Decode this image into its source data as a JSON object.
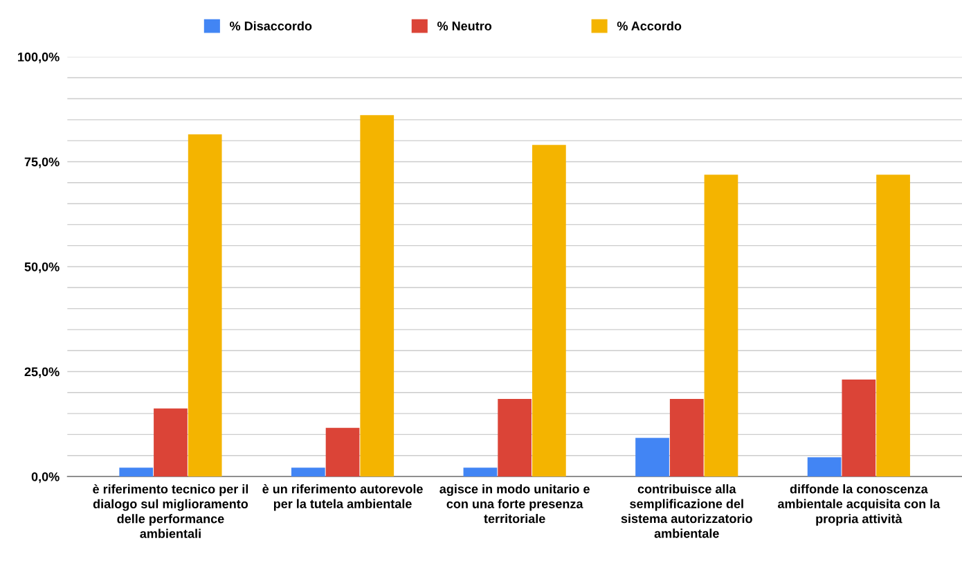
{
  "chart_data": {
    "type": "bar",
    "categories": [
      "è riferimento tecnico per il dialogo sul miglioramento delle performance ambientali",
      "è un riferimento autorevole per la tutela ambientale",
      "agisce in modo unitario e con una forte presenza territoriale",
      "contribuisce alla semplificazione del sistema autorizzatorio ambientale",
      "diffonde la conoscenza ambientale acquisita con la propria attività"
    ],
    "series": [
      {
        "name": "% Disaccordo",
        "color": "#4285f4",
        "values": [
          2.1,
          2.1,
          2.1,
          9.2,
          4.6
        ]
      },
      {
        "name": "% Neutro",
        "color": "#db4437",
        "values": [
          16.2,
          11.6,
          18.5,
          18.5,
          23.1
        ]
      },
      {
        "name": "% Accordo",
        "color": "#f4b400",
        "values": [
          81.5,
          86.1,
          79.0,
          71.9,
          71.9
        ]
      }
    ],
    "ylim": [
      0,
      100
    ],
    "yticks": [
      {
        "value": 0,
        "label": "0,0%"
      },
      {
        "value": 5,
        "label": null
      },
      {
        "value": 10,
        "label": null
      },
      {
        "value": 15,
        "label": null
      },
      {
        "value": 20,
        "label": null
      },
      {
        "value": 25,
        "label": "25,0%"
      },
      {
        "value": 30,
        "label": null
      },
      {
        "value": 35,
        "label": null
      },
      {
        "value": 40,
        "label": null
      },
      {
        "value": 45,
        "label": null
      },
      {
        "value": 50,
        "label": "50,0%"
      },
      {
        "value": 55,
        "label": null
      },
      {
        "value": 60,
        "label": null
      },
      {
        "value": 65,
        "label": null
      },
      {
        "value": 70,
        "label": null
      },
      {
        "value": 75,
        "label": "75,0%"
      },
      {
        "value": 80,
        "label": null
      },
      {
        "value": 85,
        "label": null
      },
      {
        "value": 90,
        "label": null
      },
      {
        "value": 95,
        "label": null
      },
      {
        "value": 100,
        "label": "100,0%"
      }
    ],
    "grid": "y",
    "legend": "top"
  }
}
